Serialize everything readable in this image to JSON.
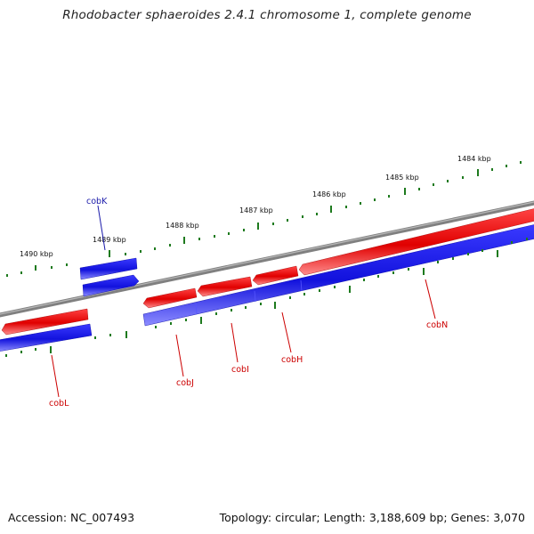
{
  "title": "Rhodobacter sphaeroides 2.4.1 chromosome 1, complete genome",
  "footer": {
    "accession": "Accession: NC_007493",
    "summary": "Topology: circular; Length: 3,188,609 bp; Genes: 3,070"
  },
  "colors": {
    "backbone": "#808080",
    "forward_gene": "#ee0000",
    "reverse_gene": "#1a1aee",
    "ticks": "#1e7a1e",
    "label_red": "#cc0000",
    "label_blue": "#1a1aaa"
  },
  "scale_labels": [
    "1490 kbp",
    "1489 kbp",
    "1488 kbp",
    "1487 kbp",
    "1486 kbp",
    "1485 kbp",
    "1484 kbp"
  ],
  "gene_labels": [
    "cobK",
    "cobL",
    "cobJ",
    "cobI",
    "cobH",
    "cobN"
  ]
}
